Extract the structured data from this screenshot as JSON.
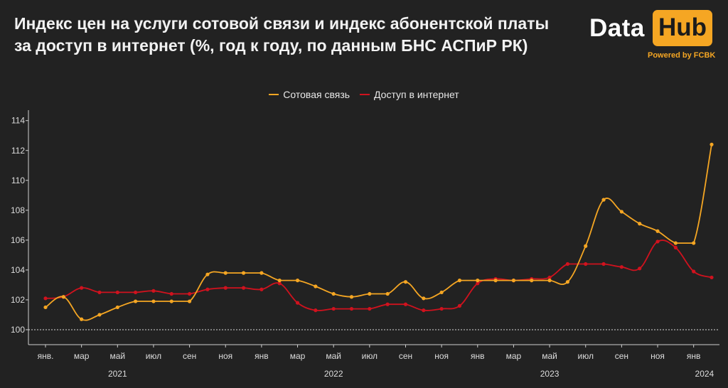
{
  "header": {
    "title_line1": "Индекс цен на услуги сотовой связи и индекс абонентской платы",
    "title_line2": "за доступ в интернет (%, год к году, по данным БНС АСПиР РК)"
  },
  "logo": {
    "data_text": "Data",
    "hub_text": "Hub",
    "powered_text": "Powered by FCBK"
  },
  "legend": {
    "items": [
      {
        "label": "Сотовая связь",
        "color": "#f5a623"
      },
      {
        "label": "Доступ в интернет",
        "color": "#d0121e"
      }
    ]
  },
  "chart_data": {
    "type": "line",
    "title": "Индекс цен на услуги сотовой связи и индекс абонентской платы за доступ в интернет (%, год к году, по данным БНС АСПиР РК)",
    "x": [
      "2021-01",
      "2021-02",
      "2021-03",
      "2021-04",
      "2021-05",
      "2021-06",
      "2021-07",
      "2021-08",
      "2021-09",
      "2021-10",
      "2021-11",
      "2021-12",
      "2022-01",
      "2022-02",
      "2022-03",
      "2022-04",
      "2022-05",
      "2022-06",
      "2022-07",
      "2022-08",
      "2022-09",
      "2022-10",
      "2022-11",
      "2022-12",
      "2023-01",
      "2023-02",
      "2023-03",
      "2023-04",
      "2023-05",
      "2023-06",
      "2023-07",
      "2023-08",
      "2023-09",
      "2023-10",
      "2023-11",
      "2023-12",
      "2024-01",
      "2024-02"
    ],
    "x_tick_labels": [
      "янв.",
      "мар",
      "май",
      "июл",
      "сен",
      "ноя",
      "янв",
      "мар",
      "май",
      "июл",
      "сен",
      "ноя",
      "янв",
      "мар",
      "май",
      "июл",
      "сен",
      "ноя",
      "янв"
    ],
    "x_tick_indices": [
      0,
      2,
      4,
      6,
      8,
      10,
      12,
      14,
      16,
      18,
      20,
      22,
      24,
      26,
      28,
      30,
      32,
      34,
      36
    ],
    "year_labels": [
      {
        "label": "2021",
        "index": 4
      },
      {
        "label": "2022",
        "index": 16
      },
      {
        "label": "2023",
        "index": 28
      },
      {
        "label": "2024",
        "index": 36.6
      }
    ],
    "series": [
      {
        "name": "Сотовая связь",
        "color": "#f5a623",
        "values": [
          101.5,
          102.2,
          100.7,
          101.0,
          101.5,
          101.9,
          101.9,
          101.9,
          101.9,
          103.7,
          103.8,
          103.8,
          103.8,
          103.3,
          103.3,
          102.9,
          102.4,
          102.2,
          102.4,
          102.4,
          103.2,
          102.1,
          102.5,
          103.3,
          103.3,
          103.3,
          103.3,
          103.3,
          103.3,
          103.2,
          105.6,
          108.7,
          107.9,
          107.1,
          106.6,
          105.8,
          105.8,
          112.4
        ]
      },
      {
        "name": "Доступ в интернет",
        "color": "#d0121e",
        "values": [
          102.1,
          102.2,
          102.8,
          102.5,
          102.5,
          102.5,
          102.6,
          102.4,
          102.4,
          102.7,
          102.8,
          102.8,
          102.7,
          103.1,
          101.8,
          101.3,
          101.4,
          101.4,
          101.4,
          101.7,
          101.7,
          101.3,
          101.4,
          101.6,
          103.1,
          103.4,
          103.3,
          103.4,
          103.5,
          104.4,
          104.4,
          104.4,
          104.2,
          104.1,
          105.9,
          105.5,
          103.9,
          103.5
        ]
      }
    ],
    "y_ticks": [
      100,
      102,
      104,
      106,
      108,
      110,
      112,
      114
    ],
    "ylim": [
      99,
      114.7
    ],
    "reference_line": 100,
    "grid": false,
    "legend_position": "top-center",
    "xlabel": "",
    "ylabel": ""
  }
}
